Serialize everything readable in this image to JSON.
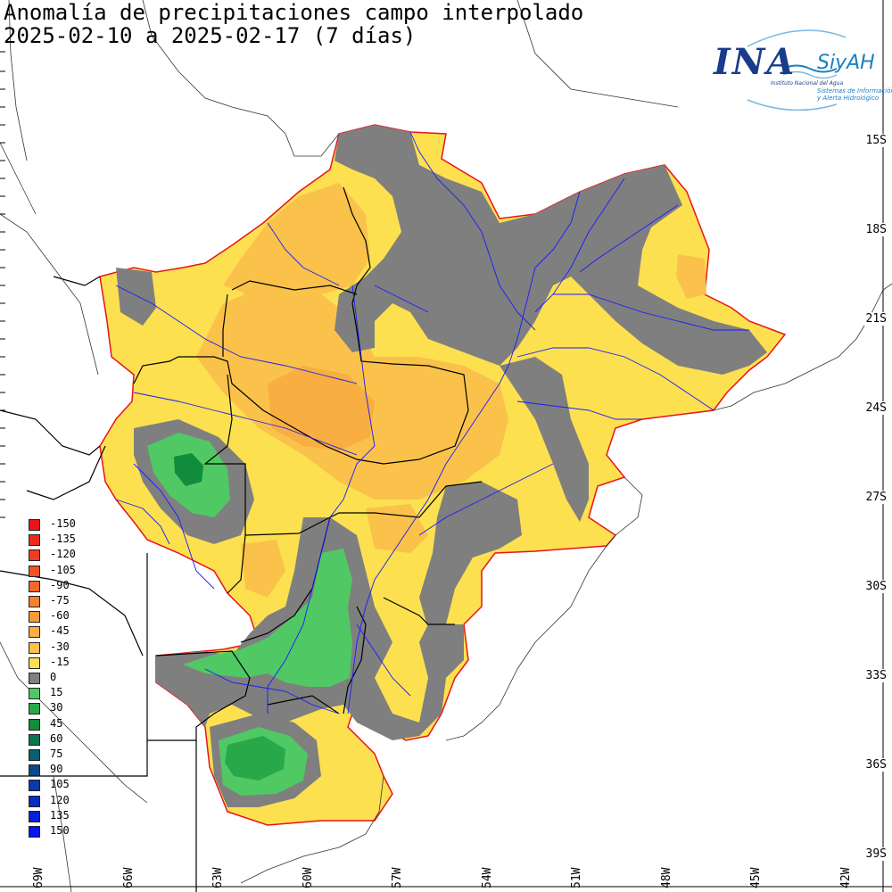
{
  "header": {
    "title_line1": "Anomalía de precipitaciones campo interpolado",
    "title_line2": "2025-02-10 a 2025-02-17 (7 días)"
  },
  "logo": {
    "ina": "INA",
    "siyah": "SiyAH",
    "institute": "Instituto Nacional del Agua",
    "system_line1": "Sistemas de Información",
    "system_line2": "y Alerta Hidrológico"
  },
  "axes": {
    "lat_labels": [
      "15S",
      "18S",
      "21S",
      "24S",
      "27S",
      "30S",
      "33S",
      "36S",
      "39S"
    ],
    "lon_labels": [
      "69W",
      "66W",
      "63W",
      "60W",
      "57W",
      "54W",
      "51W",
      "48W",
      "45W",
      "42W"
    ]
  },
  "legend": {
    "items": [
      {
        "label": "-150",
        "color": "#e8141c"
      },
      {
        "label": "-135",
        "color": "#ec2a1e"
      },
      {
        "label": "-120",
        "color": "#f03c22"
      },
      {
        "label": "-105",
        "color": "#f25226"
      },
      {
        "label": "-90",
        "color": "#f4682a"
      },
      {
        "label": "-75",
        "color": "#f6802e"
      },
      {
        "label": "-60",
        "color": "#f89a36"
      },
      {
        "label": "-45",
        "color": "#f8ae40"
      },
      {
        "label": "-30",
        "color": "#fac24a"
      },
      {
        "label": "-15",
        "color": "#fce050"
      },
      {
        "label": "0",
        "color": "#7f7f7f"
      },
      {
        "label": "15",
        "color": "#50c864"
      },
      {
        "label": "30",
        "color": "#28a848"
      },
      {
        "label": "45",
        "color": "#108c3c"
      },
      {
        "label": "60",
        "color": "#0c7650"
      },
      {
        "label": "75",
        "color": "#0a5e6e"
      },
      {
        "label": "90",
        "color": "#0a4a8c"
      },
      {
        "label": "105",
        "color": "#0a3aa8"
      },
      {
        "label": "120",
        "color": "#0a2cc0"
      },
      {
        "label": "135",
        "color": "#0a20d8"
      },
      {
        "label": "150",
        "color": "#0a14ec"
      }
    ]
  },
  "colors": {
    "basin_outline": "#e8141c",
    "rivers": "#1a1aff",
    "borders": "#000000"
  }
}
